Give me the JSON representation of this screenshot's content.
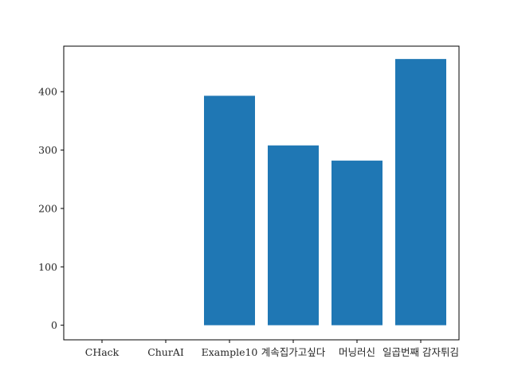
{
  "chart_data": {
    "type": "bar",
    "categories": [
      "CHack",
      "ChurAI",
      "Example10",
      "계속집가고싶다",
      "머닝러신",
      "일곱번째 감자튀김"
    ],
    "values": [
      0,
      0,
      393,
      308,
      282,
      456
    ],
    "title": "",
    "xlabel": "",
    "ylabel": "",
    "ylim": [
      -25,
      478
    ],
    "yticks": [
      0,
      100,
      200,
      300,
      400
    ],
    "grid": false,
    "legend": "none",
    "bar_color": "#1f77b4"
  }
}
